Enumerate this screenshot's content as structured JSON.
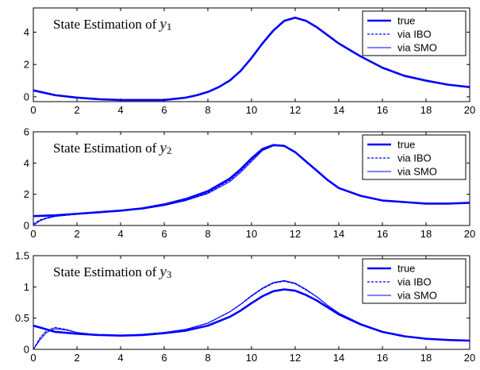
{
  "chart_data": [
    {
      "type": "line",
      "annotation": {
        "text": "State Estimation of ",
        "var": "y",
        "sub": "1"
      },
      "xlim": [
        0,
        20
      ],
      "ylim": [
        -0.3,
        5.5
      ],
      "xticks": [
        0,
        2,
        4,
        6,
        8,
        10,
        12,
        14,
        16,
        18,
        20
      ],
      "yticks": [
        0,
        2,
        4
      ],
      "legend_position": "top-right",
      "series": [
        {
          "name": "true",
          "style": "solid-thick",
          "x": [
            0,
            0.5,
            1,
            2,
            3,
            4,
            5,
            6,
            7,
            7.5,
            8,
            8.5,
            9,
            9.5,
            10,
            10.5,
            11,
            11.5,
            12,
            12.5,
            13,
            13.5,
            14,
            15,
            16,
            17,
            18,
            19,
            20
          ],
          "y": [
            0.4,
            0.25,
            0.1,
            -0.05,
            -0.15,
            -0.2,
            -0.2,
            -0.2,
            -0.05,
            0.1,
            0.3,
            0.6,
            1.0,
            1.6,
            2.4,
            3.3,
            4.1,
            4.7,
            4.9,
            4.7,
            4.3,
            3.8,
            3.3,
            2.5,
            1.8,
            1.3,
            1.0,
            0.75,
            0.6
          ]
        },
        {
          "name": "via IBO",
          "style": "dashed",
          "x": [
            0,
            0.5,
            1,
            2,
            3,
            4,
            5,
            6,
            7,
            7.5,
            8,
            8.5,
            9,
            9.5,
            10,
            10.5,
            11,
            11.5,
            12,
            12.5,
            13,
            13.5,
            14,
            15,
            16,
            17,
            18,
            19,
            20
          ],
          "y": [
            0.4,
            0.25,
            0.1,
            -0.05,
            -0.15,
            -0.2,
            -0.2,
            -0.2,
            -0.05,
            0.1,
            0.3,
            0.6,
            1.0,
            1.6,
            2.4,
            3.3,
            4.1,
            4.7,
            4.9,
            4.7,
            4.3,
            3.8,
            3.3,
            2.5,
            1.8,
            1.3,
            1.0,
            0.75,
            0.6
          ]
        },
        {
          "name": "via SMO",
          "style": "solid-thin",
          "x": [
            0,
            0.5,
            1,
            2,
            3,
            4,
            5,
            6,
            7,
            7.5,
            8,
            8.5,
            9,
            9.5,
            10,
            10.5,
            11,
            11.5,
            12,
            12.5,
            13,
            13.5,
            14,
            15,
            16,
            17,
            18,
            19,
            20
          ],
          "y": [
            0.4,
            0.25,
            0.1,
            -0.05,
            -0.15,
            -0.2,
            -0.2,
            -0.2,
            -0.05,
            0.1,
            0.3,
            0.6,
            1.0,
            1.6,
            2.4,
            3.3,
            4.1,
            4.7,
            4.9,
            4.7,
            4.3,
            3.8,
            3.3,
            2.5,
            1.8,
            1.3,
            1.0,
            0.75,
            0.6
          ]
        }
      ]
    },
    {
      "type": "line",
      "annotation": {
        "text": "State Estimation of ",
        "var": "y",
        "sub": "2"
      },
      "xlim": [
        0,
        20
      ],
      "ylim": [
        0,
        6
      ],
      "xticks": [
        0,
        2,
        4,
        6,
        8,
        10,
        12,
        14,
        16,
        18,
        20
      ],
      "yticks": [
        0,
        2,
        4,
        6
      ],
      "legend_position": "top-right",
      "series": [
        {
          "name": "true",
          "style": "solid-thick",
          "x": [
            0,
            1,
            2,
            3,
            4,
            5,
            6,
            7,
            8,
            9,
            9.5,
            10,
            10.5,
            11,
            11.5,
            12,
            12.5,
            13,
            13.5,
            14,
            15,
            16,
            17,
            18,
            19,
            20
          ],
          "y": [
            0.6,
            0.65,
            0.75,
            0.85,
            0.95,
            1.1,
            1.35,
            1.7,
            2.2,
            3.0,
            3.6,
            4.3,
            4.9,
            5.15,
            5.1,
            4.7,
            4.1,
            3.5,
            2.9,
            2.4,
            1.9,
            1.6,
            1.5,
            1.4,
            1.4,
            1.45
          ]
        },
        {
          "name": "via IBO",
          "style": "dashed",
          "x": [
            0,
            0.3,
            0.6,
            1,
            2,
            3,
            4,
            5,
            6,
            7,
            8,
            9,
            9.5,
            10,
            10.5,
            11,
            11.5,
            12,
            12.5,
            13,
            13.5,
            14,
            15,
            16,
            17,
            18,
            19,
            20
          ],
          "y": [
            0.1,
            0.35,
            0.5,
            0.6,
            0.72,
            0.83,
            0.93,
            1.07,
            1.3,
            1.65,
            2.1,
            2.9,
            3.5,
            4.2,
            4.85,
            5.15,
            5.1,
            4.7,
            4.1,
            3.5,
            2.9,
            2.4,
            1.9,
            1.6,
            1.5,
            1.4,
            1.4,
            1.45
          ]
        },
        {
          "name": "via SMO",
          "style": "solid-thin",
          "x": [
            0,
            0.3,
            0.6,
            1,
            2,
            3,
            4,
            5,
            6,
            7,
            8,
            9,
            9.5,
            10,
            10.5,
            11,
            11.5,
            12,
            12.5,
            13,
            13.5,
            14,
            15,
            16,
            17,
            18,
            19,
            20
          ],
          "y": [
            0.0,
            0.3,
            0.45,
            0.58,
            0.72,
            0.83,
            0.93,
            1.06,
            1.28,
            1.6,
            2.05,
            2.8,
            3.4,
            4.1,
            4.8,
            5.1,
            5.1,
            4.7,
            4.1,
            3.5,
            2.9,
            2.4,
            1.9,
            1.6,
            1.5,
            1.4,
            1.4,
            1.45
          ]
        }
      ]
    },
    {
      "type": "line",
      "annotation": {
        "text": "State Estimation of ",
        "var": "y",
        "sub": "3"
      },
      "xlim": [
        0,
        20
      ],
      "ylim": [
        0,
        1.5
      ],
      "xticks": [
        0,
        2,
        4,
        6,
        8,
        10,
        12,
        14,
        16,
        18,
        20
      ],
      "yticks": [
        0,
        0.5,
        1,
        1.5
      ],
      "legend_position": "top-right",
      "series": [
        {
          "name": "true",
          "style": "solid-thick",
          "x": [
            0,
            0.5,
            1,
            2,
            3,
            4,
            5,
            6,
            7,
            8,
            9,
            9.5,
            10,
            10.5,
            11,
            11.5,
            12,
            12.5,
            13,
            13.5,
            14,
            15,
            16,
            17,
            18,
            19,
            20
          ],
          "y": [
            0.38,
            0.33,
            0.28,
            0.25,
            0.23,
            0.22,
            0.23,
            0.26,
            0.3,
            0.38,
            0.52,
            0.62,
            0.74,
            0.85,
            0.93,
            0.96,
            0.94,
            0.87,
            0.78,
            0.67,
            0.56,
            0.4,
            0.28,
            0.21,
            0.17,
            0.15,
            0.14
          ]
        },
        {
          "name": "via IBO",
          "style": "dashed",
          "x": [
            0,
            0.3,
            0.6,
            1,
            1.5,
            2,
            3,
            4,
            5,
            6,
            7,
            8,
            9,
            9.5,
            10,
            10.5,
            11,
            11.5,
            12,
            12.5,
            13,
            13.5,
            14,
            15,
            16,
            17,
            18,
            19,
            20
          ],
          "y": [
            0.0,
            0.18,
            0.3,
            0.35,
            0.32,
            0.27,
            0.23,
            0.22,
            0.24,
            0.27,
            0.32,
            0.42,
            0.6,
            0.72,
            0.85,
            0.97,
            1.06,
            1.09,
            1.05,
            0.95,
            0.84,
            0.7,
            0.58,
            0.41,
            0.28,
            0.21,
            0.17,
            0.15,
            0.14
          ]
        },
        {
          "name": "via SMO",
          "style": "solid-thin",
          "x": [
            0,
            0.3,
            0.6,
            1,
            1.5,
            2,
            3,
            4,
            5,
            6,
            7,
            8,
            9,
            9.5,
            10,
            10.5,
            11,
            11.5,
            12,
            12.5,
            13,
            13.5,
            14,
            15,
            16,
            17,
            18,
            19,
            20
          ],
          "y": [
            0.0,
            0.15,
            0.27,
            0.33,
            0.31,
            0.27,
            0.23,
            0.22,
            0.24,
            0.27,
            0.32,
            0.42,
            0.6,
            0.72,
            0.86,
            0.98,
            1.07,
            1.1,
            1.06,
            0.96,
            0.84,
            0.7,
            0.58,
            0.41,
            0.28,
            0.21,
            0.17,
            0.15,
            0.14
          ]
        }
      ]
    }
  ],
  "legend_labels": [
    "true",
    "via IBO",
    "via SMO"
  ],
  "colors": {
    "line": "#0000ff",
    "axis": "#000000",
    "background": "#ffffff"
  }
}
